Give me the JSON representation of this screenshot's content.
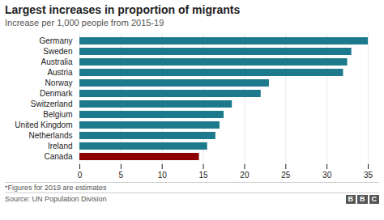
{
  "chart_data": {
    "type": "bar",
    "orientation": "horizontal",
    "title": "Largest increases in proportion of migrants",
    "subtitle": "Increase per 1,000 people from 2015-19",
    "categories": [
      "Germany",
      "Sweden",
      "Australia",
      "Austria",
      "Norway",
      "Denmark",
      "Switzerland",
      "Belgium",
      "United Kingdom",
      "Netherlands",
      "Ireland",
      "Canada"
    ],
    "values": [
      35,
      33,
      32.5,
      32,
      23,
      22,
      18.5,
      17.5,
      17,
      16.5,
      15.5,
      14.5
    ],
    "colors": [
      "#1d7a8c",
      "#1d7a8c",
      "#1d7a8c",
      "#1d7a8c",
      "#1d7a8c",
      "#1d7a8c",
      "#1d7a8c",
      "#1d7a8c",
      "#1d7a8c",
      "#1d7a8c",
      "#1d7a8c",
      "#8b0000"
    ],
    "xlim": [
      0,
      35
    ],
    "xticks": [
      0,
      5,
      10,
      15,
      20,
      25,
      30,
      35
    ],
    "grid": true,
    "annotations": [
      "*Figures for 2019 are estimates",
      "Source: UN Population Division",
      "BBC"
    ]
  }
}
